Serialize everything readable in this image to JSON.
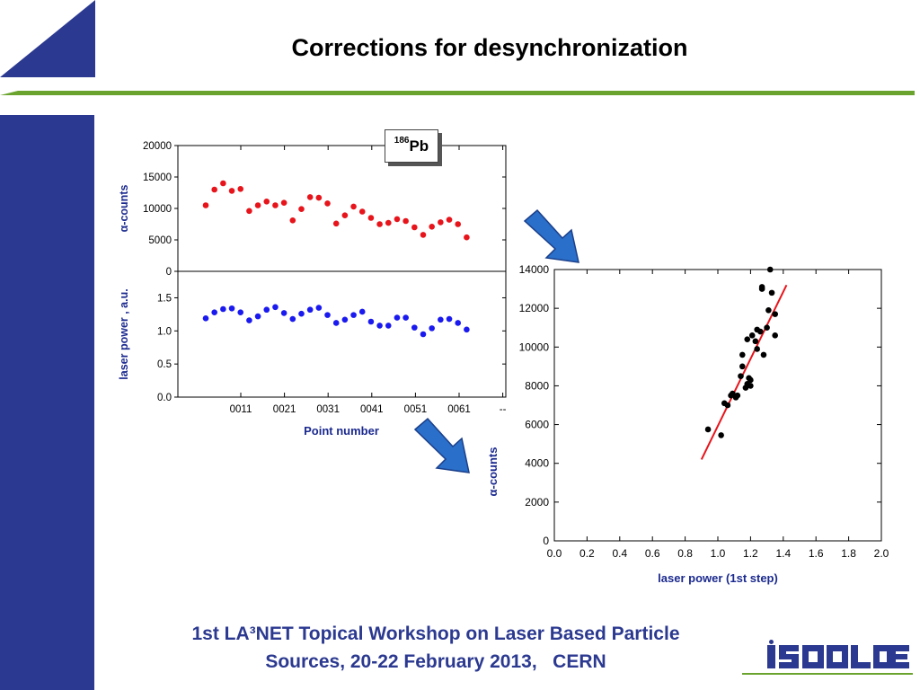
{
  "slide": {
    "title": "Corrections for desynchronization",
    "footer_line1": "1st LA³NET Topical Workshop on Laser Based Particle",
    "footer_line2": "Sources, 20-22 February 2013,   CERN",
    "isotope_mass": "186",
    "isotope_symbol": "Pb",
    "logo_text": "ISOLDE",
    "colors": {
      "sidebar": "#2b3990",
      "accent_green": "#6aa42f",
      "arrow": "#2a6fc9"
    }
  },
  "chart_data": [
    {
      "type": "scatter",
      "ylabel": "α-counts",
      "ylim": [
        0,
        20000
      ],
      "yticks": [
        "20000",
        "15000",
        "10000",
        "5000",
        "0"
      ],
      "marker_color": "#e8141b",
      "x": [
        1,
        2,
        3,
        4,
        5,
        6,
        7,
        8,
        9,
        10,
        11,
        12,
        13,
        14,
        15,
        16,
        17,
        18,
        19,
        20,
        21,
        22,
        23,
        24,
        25,
        26,
        27,
        28,
        29,
        30,
        31
      ],
      "values": [
        10500,
        13000,
        14000,
        12800,
        13100,
        9600,
        10500,
        11100,
        10500,
        10900,
        8100,
        9900,
        11800,
        11700,
        10800,
        7600,
        8900,
        10300,
        9500,
        8500,
        7500,
        7700,
        8300,
        8000,
        7000,
        5800,
        7100,
        7800,
        8200,
        7500,
        5400
      ]
    },
    {
      "type": "scatter",
      "ylabel": "laser power , a.u.",
      "xlabel": "Point number",
      "ylim": [
        0,
        1.9
      ],
      "yticks": [
        "1.5",
        "1.0",
        "0.5",
        "0.0"
      ],
      "xticks": [
        "0011",
        "0021",
        "0031",
        "0041",
        "0051",
        "0061",
        "--"
      ],
      "marker_color": "#1a1af0",
      "x": [
        1,
        2,
        3,
        4,
        5,
        6,
        7,
        8,
        9,
        10,
        11,
        12,
        13,
        14,
        15,
        16,
        17,
        18,
        19,
        20,
        21,
        22,
        23,
        24,
        25,
        26,
        27,
        28,
        29,
        30,
        31
      ],
      "values": [
        1.19,
        1.28,
        1.33,
        1.34,
        1.28,
        1.16,
        1.22,
        1.32,
        1.36,
        1.27,
        1.18,
        1.26,
        1.32,
        1.35,
        1.24,
        1.12,
        1.17,
        1.24,
        1.29,
        1.14,
        1.08,
        1.08,
        1.2,
        1.2,
        1.05,
        0.95,
        1.04,
        1.17,
        1.18,
        1.12,
        1.02
      ]
    },
    {
      "type": "scatter",
      "xlabel": "laser power (1st step)",
      "ylabel": "α-counts",
      "xlim": [
        0,
        2.0
      ],
      "ylim": [
        0,
        14000
      ],
      "xticks": [
        "0.0",
        "0.2",
        "0.4",
        "0.6",
        "0.8",
        "1.0",
        "1.2",
        "1.4",
        "1.6",
        "1.8",
        "2.0"
      ],
      "yticks": [
        "14000",
        "12000",
        "10000",
        "8000",
        "6000",
        "4000",
        "2000",
        "0"
      ],
      "marker_color": "#000000",
      "fit_color": "#e8141b",
      "points": [
        [
          0.94,
          5750
        ],
        [
          1.02,
          5450
        ],
        [
          1.04,
          7100
        ],
        [
          1.06,
          7000
        ],
        [
          1.08,
          7500
        ],
        [
          1.09,
          7600
        ],
        [
          1.11,
          7400
        ],
        [
          1.12,
          7500
        ],
        [
          1.14,
          8500
        ],
        [
          1.15,
          9000
        ],
        [
          1.15,
          9600
        ],
        [
          1.17,
          7900
        ],
        [
          1.18,
          8100
        ],
        [
          1.18,
          10400
        ],
        [
          1.19,
          8400
        ],
        [
          1.2,
          8300
        ],
        [
          1.2,
          8000
        ],
        [
          1.21,
          10600
        ],
        [
          1.23,
          10300
        ],
        [
          1.24,
          9900
        ],
        [
          1.24,
          10900
        ],
        [
          1.26,
          10800
        ],
        [
          1.27,
          13100
        ],
        [
          1.27,
          13000
        ],
        [
          1.28,
          9600
        ],
        [
          1.3,
          11000
        ],
        [
          1.31,
          11900
        ],
        [
          1.32,
          14000
        ],
        [
          1.33,
          12800
        ],
        [
          1.35,
          11700
        ],
        [
          1.35,
          10600
        ]
      ],
      "fit": [
        [
          0.9,
          4200
        ],
        [
          1.42,
          13200
        ]
      ]
    }
  ]
}
